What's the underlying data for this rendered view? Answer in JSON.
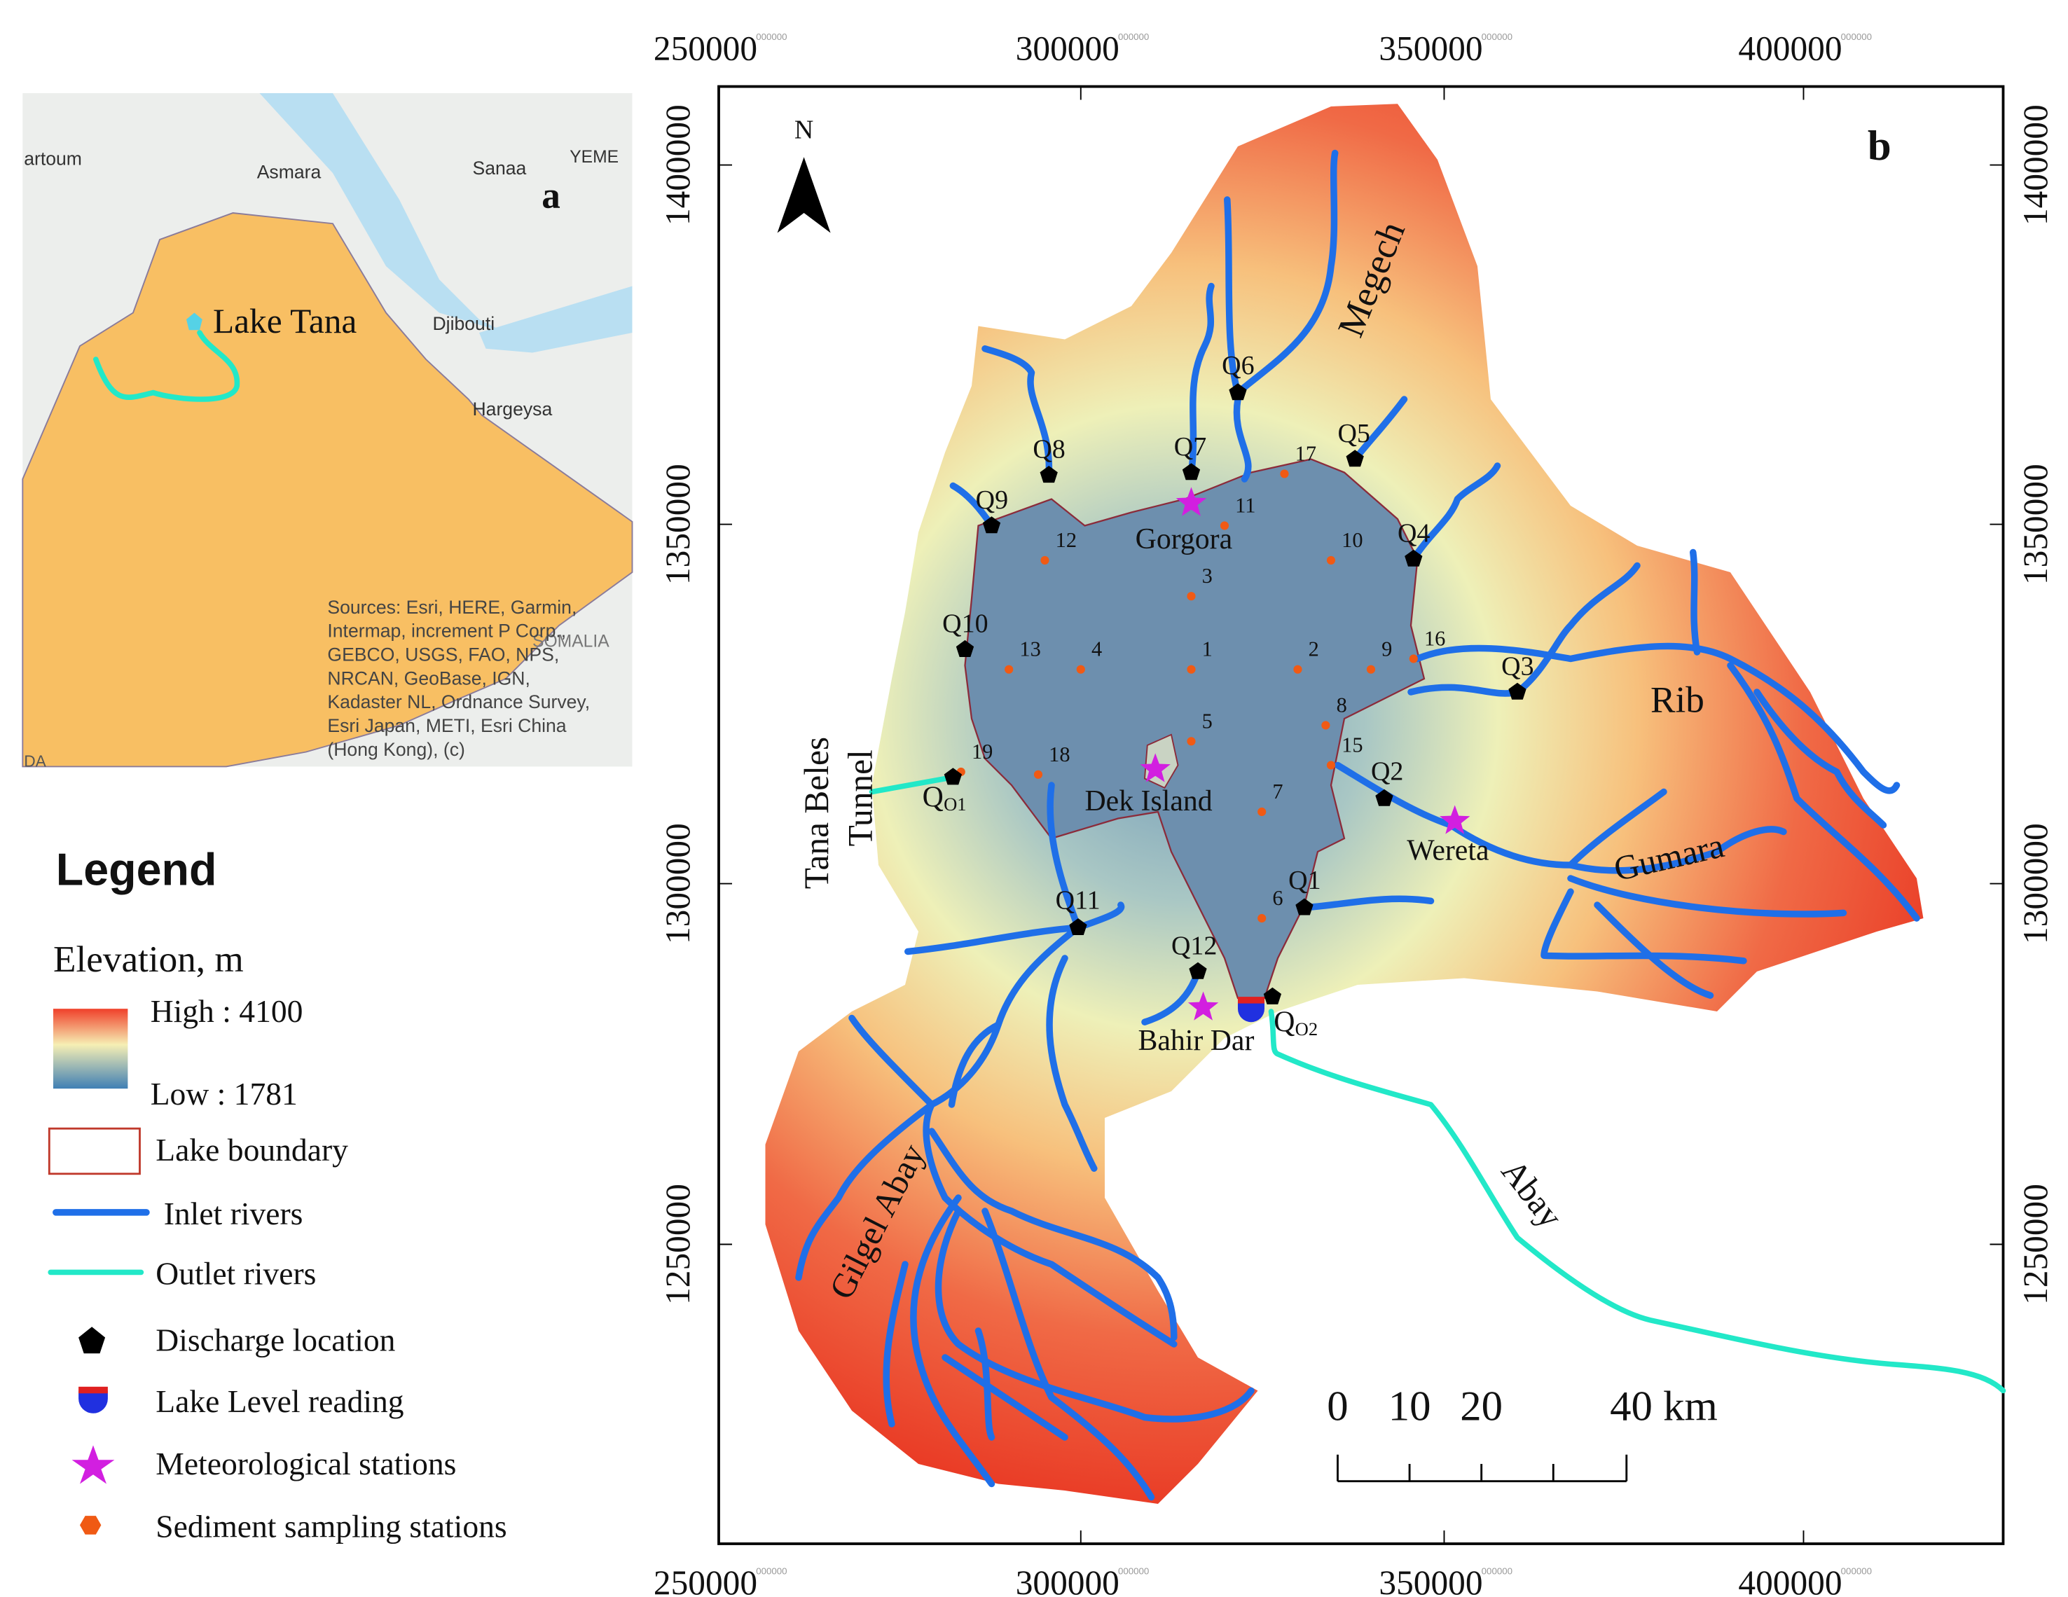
{
  "inset": {
    "label": "a",
    "lake_label": "Lake Tana",
    "places": [
      "artoum",
      "Asmara",
      "Sanaa",
      "YEME",
      "Djibouti",
      "Hargeysa",
      "SOMALIA",
      "DA"
    ],
    "sources": [
      "Sources: Esri, HERE, Garmin,",
      "Intermap, increment P Corp.,",
      "GEBCO, USGS, FAO, NPS,",
      "NRCAN, GeoBase, IGN,",
      "Kadaster NL, Ordnance Survey,",
      "Esri Japan, METI, Esri China",
      "(Hong Kong), (c)"
    ]
  },
  "legend": {
    "title": "Legend",
    "elevation_title": "Elevation, m",
    "high": "High : 4100",
    "low": "Low : 1781",
    "items": [
      "Lake boundary",
      "Inlet rivers",
      "Outlet rivers",
      "Discharge location",
      "Lake Level reading",
      "Meteorological stations",
      "Sediment sampling stations"
    ]
  },
  "map": {
    "label": "b",
    "north": "N",
    "tick_suffix": "000000",
    "x_ticks": [
      "250000",
      "300000",
      "350000",
      "400000"
    ],
    "y_ticks": [
      "1400000",
      "1350000",
      "1300000",
      "1250000"
    ],
    "rivers": [
      "Megech",
      "Rib",
      "Gumara",
      "Gilgel Abay",
      "Abay"
    ],
    "places": [
      "Gorgora",
      "Dek Island",
      "Wereta",
      "Bahir Dar"
    ],
    "tunnel": [
      "Tana Beles",
      "Tunnel"
    ],
    "discharge": [
      "Q1",
      "Q2",
      "Q3",
      "Q4",
      "Q5",
      "Q6",
      "Q7",
      "Q8",
      "Q9",
      "Q10",
      "Q11",
      "Q12"
    ],
    "outlets": [
      {
        "main": "Q",
        "sub": "O1"
      },
      {
        "main": "Q",
        "sub": "O2"
      }
    ],
    "sediment": [
      "1",
      "2",
      "3",
      "4",
      "5",
      "6",
      "7",
      "8",
      "9",
      "10",
      "11",
      "12",
      "13",
      "15",
      "16",
      "17",
      "18",
      "19"
    ],
    "scale_bar": [
      "0",
      "10",
      "20",
      "40 km"
    ]
  }
}
